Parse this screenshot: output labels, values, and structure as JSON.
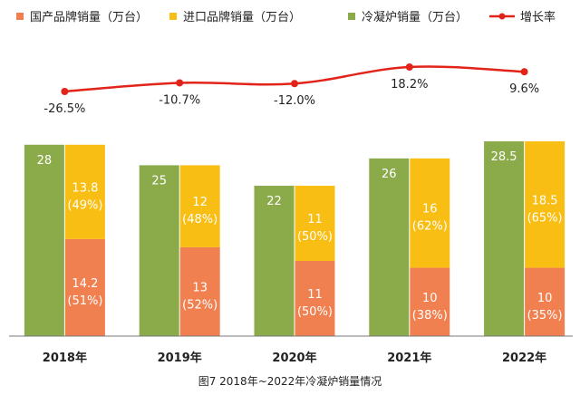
{
  "chart_data": {
    "type": "bar",
    "title": "",
    "caption": "图7  2018年~2022年冷凝炉销量情况",
    "categories": [
      "2018年",
      "2019年",
      "2020年",
      "2021年",
      "2022年"
    ],
    "legend_position": "top",
    "series": [
      {
        "name": "国产品牌销量（万台）",
        "color": "#F08050",
        "values": [
          14.2,
          13,
          11,
          10,
          10
        ],
        "labels": [
          [
            "14.2",
            "(51%)"
          ],
          [
            "13",
            "(52%)"
          ],
          [
            "11",
            "(50%)"
          ],
          [
            "10",
            "(38%)"
          ],
          [
            "10",
            "(35%)"
          ]
        ]
      },
      {
        "name": "进口品牌销量（万台）",
        "color": "#F9BE13",
        "values": [
          13.8,
          12,
          11,
          16,
          18.5
        ],
        "labels": [
          [
            "13.8",
            "(49%)"
          ],
          [
            "12",
            "(48%)"
          ],
          [
            "11",
            "(50%)"
          ],
          [
            "16",
            "(62%)"
          ],
          [
            "18.5",
            "(65%)"
          ]
        ]
      },
      {
        "name": "冷凝炉销量（万台）",
        "color": "#8BAA4A",
        "values": [
          28,
          25,
          22,
          26,
          28.5
        ],
        "labels": [
          [
            "28"
          ],
          [
            "25"
          ],
          [
            "22"
          ],
          [
            "26"
          ],
          [
            "28.5"
          ]
        ]
      }
    ],
    "growth": {
      "name": "增长率",
      "color": "#E2231A",
      "values": [
        -26.5,
        -10.7,
        -12.0,
        18.2,
        9.6
      ],
      "labels": [
        "-26.5%",
        "-10.7%",
        "-12.0%",
        "18.2%",
        "9.6%"
      ]
    },
    "ylim": [
      0,
      28.5
    ],
    "grid": false
  }
}
